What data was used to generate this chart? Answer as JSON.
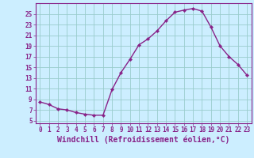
{
  "x": [
    0,
    1,
    2,
    3,
    4,
    5,
    6,
    7,
    8,
    9,
    10,
    11,
    12,
    13,
    14,
    15,
    16,
    17,
    18,
    19,
    20,
    21,
    22,
    23
  ],
  "y": [
    8.5,
    8.0,
    7.2,
    7.0,
    6.5,
    6.2,
    6.0,
    6.0,
    10.8,
    14.0,
    16.5,
    19.2,
    20.3,
    21.8,
    23.7,
    25.3,
    25.7,
    26.0,
    25.5,
    22.5,
    19.0,
    17.0,
    15.5,
    13.5
  ],
  "line_color": "#882288",
  "marker": "D",
  "marker_size": 2.2,
  "bg_color": "#cceeff",
  "grid_color": "#99cccc",
  "xlabel": "Windchill (Refroidissement éolien,°C)",
  "xlim": [
    -0.5,
    23.5
  ],
  "ylim": [
    4.5,
    27
  ],
  "yticks": [
    5,
    7,
    9,
    11,
    13,
    15,
    17,
    19,
    21,
    23,
    25
  ],
  "xticks": [
    0,
    1,
    2,
    3,
    4,
    5,
    6,
    7,
    8,
    9,
    10,
    11,
    12,
    13,
    14,
    15,
    16,
    17,
    18,
    19,
    20,
    21,
    22,
    23
  ],
  "font_color": "#882288",
  "tick_fontsize": 5.5,
  "label_fontsize": 7.0,
  "linewidth": 1.0
}
